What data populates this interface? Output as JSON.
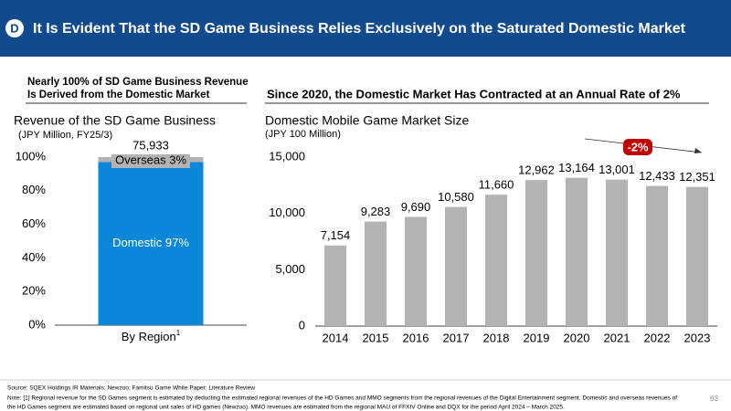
{
  "header": {
    "badge": "D",
    "title": "It Is Evident That the SD Game Business Relies Exclusively on the Saturated Domestic Market"
  },
  "left_heading": [
    "Nearly 100% of SD Game Business Revenue",
    "Is Derived from the Domestic Market"
  ],
  "right_heading": "Since 2020, the Domestic Market Has Contracted at an Annual Rate of 2%",
  "chart_data": [
    {
      "type": "stacked_bar",
      "title": "Revenue of the SD Game Business",
      "subtitle": "(JPY Million, FY25/3)",
      "categories": [
        "By Region"
      ],
      "category_note_marks": [
        "1"
      ],
      "series": [
        {
          "name": "Domestic",
          "color": "#0a87d8",
          "values": [
            97
          ],
          "value_labels": [
            "Domestic 97%"
          ]
        },
        {
          "name": "Overseas",
          "color": "#b3b3b3",
          "values": [
            3
          ],
          "value_labels": [
            "Overseas 3%"
          ]
        }
      ],
      "annotations": [
        "75,933"
      ],
      "ylim": [
        0,
        100
      ],
      "yticks": [
        {
          "value": 0,
          "label": "0%"
        },
        {
          "value": 20,
          "label": "20%"
        },
        {
          "value": 40,
          "label": "40%"
        },
        {
          "value": 60,
          "label": "60%"
        },
        {
          "value": 80,
          "label": "80%"
        },
        {
          "value": 100,
          "label": "100%"
        }
      ]
    },
    {
      "type": "bar",
      "title": "Domestic Mobile Game Market Size",
      "subtitle": "(JPY 100 Million)",
      "categories": [
        "2014",
        "2015",
        "2016",
        "2017",
        "2018",
        "2019",
        "2020",
        "2021",
        "2022",
        "2023"
      ],
      "values": [
        7154,
        9283,
        9690,
        10580,
        11660,
        12962,
        13164,
        13001,
        12433,
        12351
      ],
      "value_labels": [
        "7,154",
        "9,283",
        "9,690",
        "10,580",
        "11,660",
        "12,962",
        "13,164",
        "13,001",
        "12,433",
        "12,351"
      ],
      "color": "#b3b3b3",
      "annotations": [
        "-2%"
      ],
      "ylim": [
        0,
        15000
      ],
      "yticks": [
        0,
        {
          "value": 5000,
          "label": "5,000"
        },
        {
          "value": 10000,
          "label": "10,000"
        },
        {
          "value": 15000,
          "label": "15,000"
        }
      ]
    }
  ],
  "footer": {
    "source": "Source: SQEX Holdings IR Materials; Newzoo; Famitsu Game White Paper; Literature Review",
    "note_lines": [
      "Note: [1] Regional revenue for the SD Games segment is estimated by deducting the estimated regional revenues of the HD Games and MMO segments from the regional revenues of the Digital Entertainment segment. Domestic and overseas revenues of",
      "the HD Games segment are estimated based on regional unit sales of HD games (Newzoo). MMO revenues are estimated from the regional MAU of FFXIV Online and DQX for the period April 2024 – March 2025."
    ],
    "page": "63"
  }
}
